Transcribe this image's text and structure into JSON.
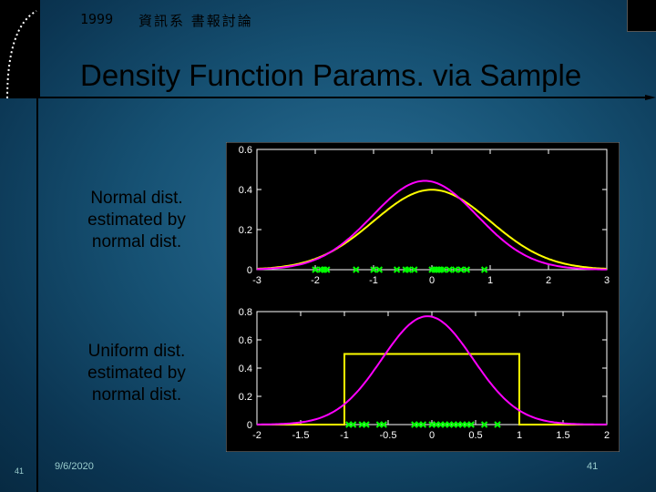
{
  "header": {
    "year": "1999",
    "course": "資訊系 書報討論"
  },
  "title": "Density Function Params. via Sample",
  "captions": {
    "normal": [
      "Normal dist.",
      "estimated by",
      "normal dist."
    ],
    "uniform": [
      "Uniform dist.",
      "estimated by",
      "normal dist."
    ]
  },
  "footer": {
    "slide_num": "41",
    "date": "9/6/2020",
    "page": "41"
  },
  "colors": {
    "true_density": "#ffff00",
    "estimated_density": "#ff00ff",
    "samples": "#00ff00",
    "plot_bg": "#000000",
    "axes": "#ffffff"
  },
  "chart_data": [
    {
      "type": "line",
      "xlim": [
        -3,
        3
      ],
      "ylim": [
        0,
        0.6
      ],
      "xticks": [
        "-3",
        "-2",
        "-1",
        "0",
        "1",
        "2",
        "3"
      ],
      "yticks": [
        "0",
        "0.2",
        "0.4",
        "0.6"
      ],
      "series": [
        {
          "kind": "normal",
          "mean": 0.0,
          "sd": 1.0,
          "color": "#ffff00"
        },
        {
          "kind": "normal",
          "mean": -0.12,
          "sd": 0.9,
          "color": "#ff00ff"
        }
      ],
      "samples": [
        -2.0,
        -1.9,
        -1.85,
        -1.8,
        -1.3,
        -1.0,
        -0.9,
        -0.6,
        -0.45,
        -0.4,
        -0.3,
        0.0,
        0.05,
        0.1,
        0.15,
        0.2,
        0.3,
        0.4,
        0.5,
        0.6,
        0.9
      ]
    },
    {
      "type": "line",
      "xlim": [
        -2,
        2
      ],
      "ylim": [
        0,
        0.8
      ],
      "xticks": [
        "-2",
        "-1.5",
        "-1",
        "-0.5",
        "0",
        "0.5",
        "1",
        "1.5",
        "2"
      ],
      "yticks": [
        "0",
        "0.2",
        "0.4",
        "0.6",
        "0.8"
      ],
      "series": [
        {
          "kind": "uniform",
          "low": -1.0,
          "high": 1.0,
          "color": "#ffff00"
        },
        {
          "kind": "normal",
          "mean": -0.05,
          "sd": 0.52,
          "color": "#ff00ff"
        }
      ],
      "samples": [
        -0.95,
        -0.9,
        -0.8,
        -0.75,
        -0.6,
        -0.55,
        -0.2,
        -0.15,
        -0.1,
        0.0,
        0.05,
        0.1,
        0.15,
        0.2,
        0.25,
        0.3,
        0.35,
        0.4,
        0.45,
        0.6,
        0.75
      ]
    }
  ]
}
